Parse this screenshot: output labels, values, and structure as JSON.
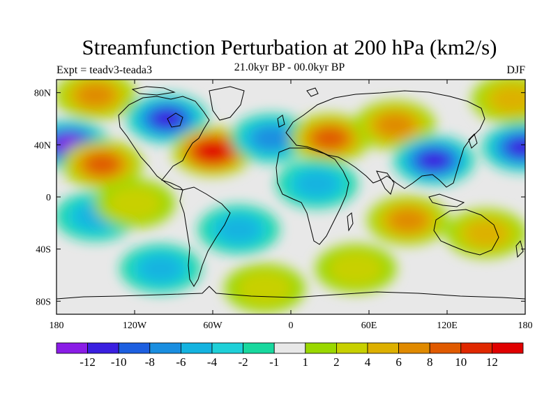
{
  "title": "Streamfunction Perturbation at 200 hPa (km2/s)",
  "left_label": "Expt = teadv3-teada3",
  "center_label": "21.0kyr BP - 00.0kyr BP",
  "right_label": "DJF",
  "chart_data": {
    "type": "heatmap",
    "projection": "cylindrical-equidistant",
    "lon_range": [
      -180,
      180
    ],
    "lat_range": [
      -90,
      90
    ],
    "x_ticks": [
      {
        "value": -180,
        "label": "180"
      },
      {
        "value": -120,
        "label": "120W"
      },
      {
        "value": -60,
        "label": "60W"
      },
      {
        "value": 0,
        "label": "0"
      },
      {
        "value": 60,
        "label": "60E"
      },
      {
        "value": 120,
        "label": "120E"
      },
      {
        "value": 180,
        "label": "180"
      }
    ],
    "y_ticks": [
      {
        "value": 80,
        "label": "80N"
      },
      {
        "value": 40,
        "label": "40N"
      },
      {
        "value": 0,
        "label": "0"
      },
      {
        "value": -40,
        "label": "40S"
      },
      {
        "value": -80,
        "label": "80S"
      }
    ],
    "colorbar": {
      "levels": [
        -12,
        -10,
        -8,
        -6,
        -4,
        -2,
        -1,
        1,
        2,
        4,
        6,
        8,
        10,
        12
      ],
      "labels": [
        "-12",
        "-10",
        "-8",
        "-6",
        "-4",
        "-2",
        "-1",
        "1",
        "2",
        "4",
        "6",
        "8",
        "10",
        "12"
      ],
      "colors": [
        "#8a1ce6",
        "#3a1fe0",
        "#1d5fe0",
        "#1a8ee0",
        "#14b3e0",
        "#1ed0d8",
        "#18d89e",
        "#e8e8e8",
        "#9ad800",
        "#c8d000",
        "#ddb000",
        "#e08a00",
        "#e05a00",
        "#e02800",
        "#e00000"
      ]
    },
    "features": [
      {
        "lon": -170,
        "lat": 40,
        "value": -12
      },
      {
        "lon": -95,
        "lat": 60,
        "value": -10
      },
      {
        "lon": -60,
        "lat": 35,
        "value": 12
      },
      {
        "lon": -145,
        "lat": 25,
        "value": 8
      },
      {
        "lon": -150,
        "lat": 78,
        "value": 6
      },
      {
        "lon": -15,
        "lat": 45,
        "value": -6
      },
      {
        "lon": 30,
        "lat": 45,
        "value": 8
      },
      {
        "lon": 80,
        "lat": 55,
        "value": 6
      },
      {
        "lon": 110,
        "lat": 28,
        "value": -10
      },
      {
        "lon": 178,
        "lat": 38,
        "value": -10
      },
      {
        "lon": 170,
        "lat": 75,
        "value": 4
      },
      {
        "lon": 90,
        "lat": -18,
        "value": 6
      },
      {
        "lon": 150,
        "lat": -28,
        "value": 4
      },
      {
        "lon": -150,
        "lat": -15,
        "value": -4
      },
      {
        "lon": -120,
        "lat": -5,
        "value": 2
      },
      {
        "lon": -100,
        "lat": -55,
        "value": -4
      },
      {
        "lon": -40,
        "lat": -25,
        "value": -4
      },
      {
        "lon": 20,
        "lat": 10,
        "value": -4
      },
      {
        "lon": 50,
        "lat": -55,
        "value": 2
      },
      {
        "lon": -20,
        "lat": -70,
        "value": 2
      }
    ]
  }
}
